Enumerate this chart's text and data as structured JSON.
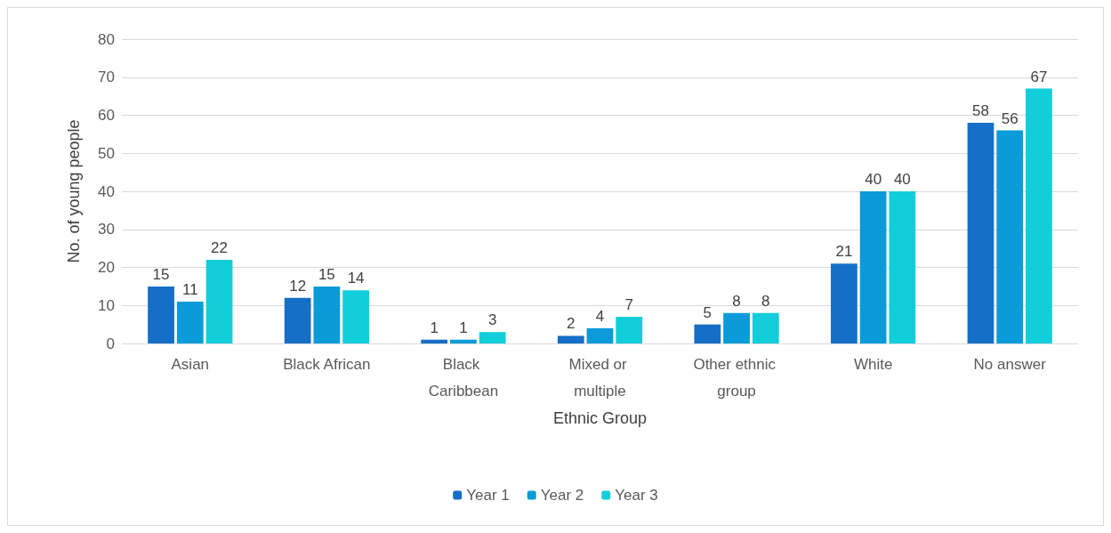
{
  "chart_data": {
    "type": "bar",
    "xlabel": "Ethnic Group",
    "ylabel": "No. of young people",
    "categories": [
      "Asian",
      "Black African",
      "Black Caribbean",
      "Mixed or multiple",
      "Other ethnic group",
      "White",
      "No answer"
    ],
    "series": [
      {
        "name": "Year 1",
        "color": "#166fc6",
        "values": [
          15,
          12,
          1,
          2,
          5,
          21,
          58
        ]
      },
      {
        "name": "Year 2",
        "color": "#0a9bd8",
        "values": [
          11,
          15,
          1,
          4,
          8,
          40,
          56
        ]
      },
      {
        "name": "Year 3",
        "color": "#12cedb",
        "values": [
          22,
          14,
          3,
          7,
          8,
          40,
          67
        ]
      }
    ],
    "ylim": [
      0,
      80
    ],
    "yticks": [
      0,
      10,
      20,
      30,
      40,
      50,
      60,
      70,
      80
    ],
    "grid": "y",
    "legend": "bottom",
    "data_labels": true
  }
}
